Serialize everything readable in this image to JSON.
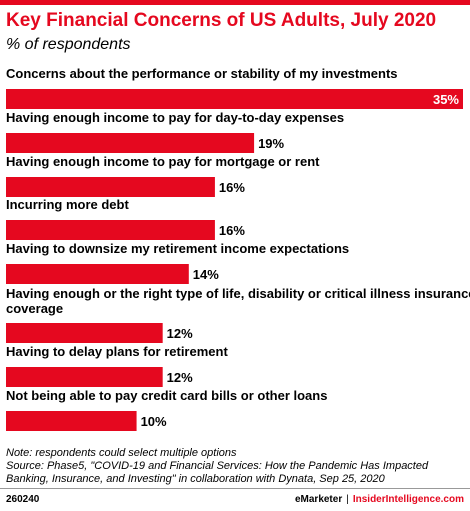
{
  "header": {
    "title": "Key Financial Concerns of US Adults, July 2020",
    "subtitle": "% of respondents"
  },
  "colors": {
    "accent": "#e5081f",
    "bar": "#e5081f"
  },
  "chart_data": {
    "type": "bar",
    "orientation": "horizontal",
    "categories": [
      [
        "Concerns about the performance or stability of my investments"
      ],
      [
        "Having enough income to pay for day-to-day expenses"
      ],
      [
        "Having enough income to pay for mortgage or rent"
      ],
      [
        "Incurring more debt"
      ],
      [
        "Having to downsize my retirement income expectations"
      ],
      [
        "Having enough or the right type of life, disability or critical illness insurance",
        "coverage"
      ],
      [
        "Having to delay plans for retirement"
      ],
      [
        "Not being able to pay credit card bills or other loans"
      ]
    ],
    "values": [
      35,
      19,
      16,
      16,
      14,
      12,
      12,
      10
    ],
    "value_labels": [
      "35%",
      "19%",
      "16%",
      "16%",
      "14%",
      "12%",
      "12%",
      "10%"
    ],
    "unit": "%",
    "xlim": [
      0,
      35
    ],
    "grid": false,
    "legend": "none"
  },
  "notes": {
    "note": "Note: respondents could select multiple options",
    "source_line1": "Source: Phase5, \"COVID-19 and Financial Services: How the Pandemic Has Impacted",
    "source_line2": "Banking, Insurance, and Investing\" in collaboration with Dynata, Sep 25, 2020"
  },
  "footer": {
    "chart_id": "260240",
    "brand1": "eMarketer",
    "separator": "|",
    "brand2": "InsiderIntelligence.com"
  }
}
